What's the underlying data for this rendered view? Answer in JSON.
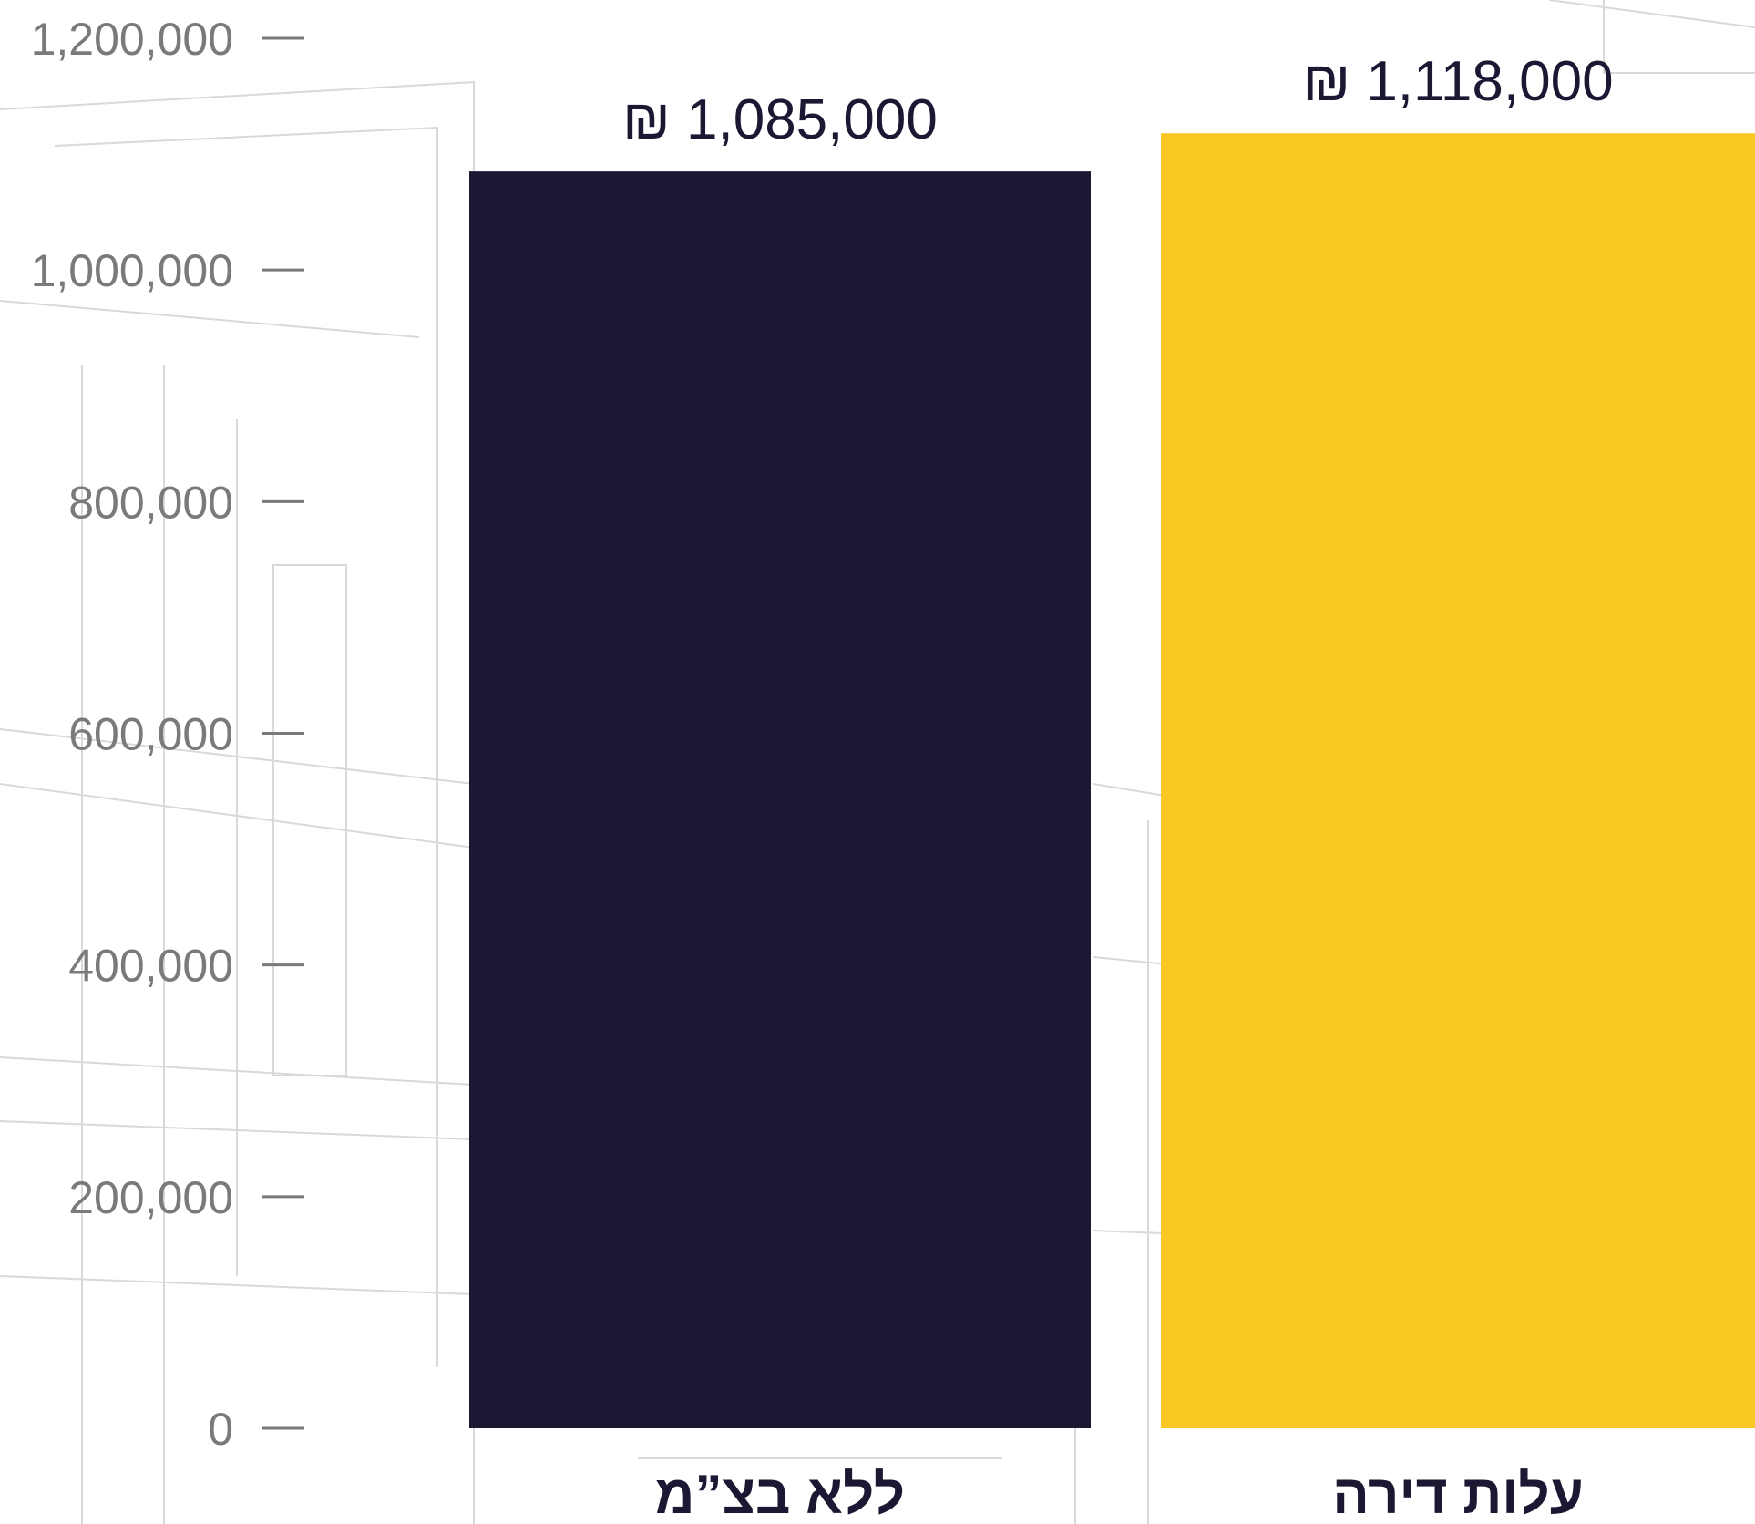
{
  "chart_data": {
    "type": "bar",
    "categories": [
      "ללא בצ”מ",
      "עלות דירה"
    ],
    "values": [
      1085000,
      1118000
    ],
    "value_labels": [
      "₪ 1,085,000",
      "₪ 1,118,000"
    ],
    "bar_colors": [
      "#1b1833",
      "#fbc823"
    ],
    "y_ticks": [
      0,
      200000,
      400000,
      600000,
      800000,
      1000000,
      1200000
    ],
    "y_tick_labels": [
      "0",
      "200,000",
      "400,000",
      "600,000",
      "800,000",
      "1,000,000",
      "1,200,000"
    ],
    "ylim": [
      0,
      1200000
    ],
    "grid": false,
    "title": "",
    "xlabel": "",
    "ylabel": ""
  },
  "colors": {
    "tick_text": "#7a7a7a",
    "label_text": "#1b1833",
    "background": "#ffffff",
    "background_sketch": "#d9d9dc"
  }
}
